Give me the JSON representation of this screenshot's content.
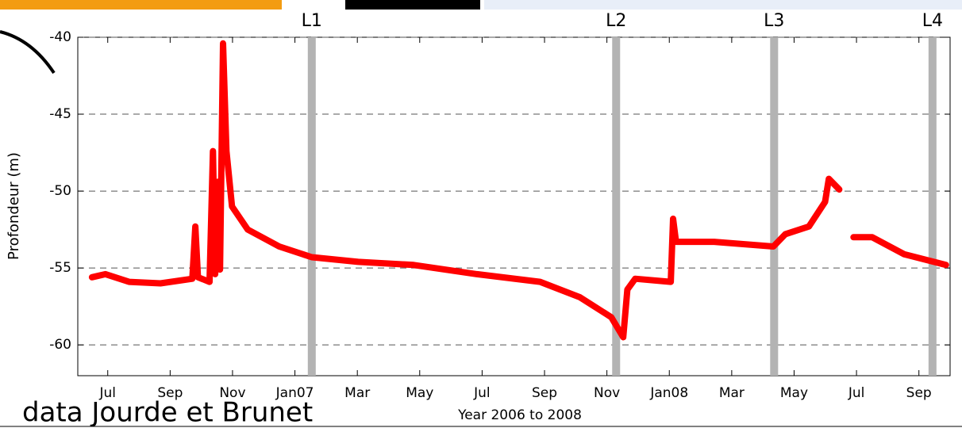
{
  "chart_data": {
    "type": "line",
    "ylabel": "Profondeur (m)",
    "xlabel": "Year 2006 to 2008",
    "note": "data Jourde et Brunet",
    "xlim": [
      2006.42,
      2008.75
    ],
    "ylim": [
      -62,
      -40
    ],
    "yticks": [
      -60,
      -55,
      -50,
      -45,
      -40
    ],
    "xticks": [
      {
        "value": 2006.5,
        "label": "Jul"
      },
      {
        "value": 2006.6667,
        "label": "Sep"
      },
      {
        "value": 2006.8333,
        "label": "Nov"
      },
      {
        "value": 2007.0,
        "label": "Jan07"
      },
      {
        "value": 2007.1667,
        "label": "Mar"
      },
      {
        "value": 2007.3333,
        "label": "May"
      },
      {
        "value": 2007.5,
        "label": "Jul"
      },
      {
        "value": 2007.6667,
        "label": "Sep"
      },
      {
        "value": 2007.8333,
        "label": "Nov"
      },
      {
        "value": 2008.0,
        "label": "Jan08"
      },
      {
        "value": 2008.1667,
        "label": "Mar"
      },
      {
        "value": 2008.3333,
        "label": "May"
      },
      {
        "value": 2008.5,
        "label": "Jul"
      },
      {
        "value": 2008.6667,
        "label": "Sep"
      }
    ],
    "grid": true,
    "bands": [
      {
        "label": "L1",
        "x": 2007.045
      },
      {
        "label": "L2",
        "x": 2007.858
      },
      {
        "label": "L3",
        "x": 2008.28
      },
      {
        "label": "L4",
        "x": 2008.703
      }
    ],
    "band_color": "#b3b3b3",
    "series": [
      {
        "color": "#ff0000",
        "x": [
          2006.458,
          2006.494,
          2006.557,
          2006.641,
          2006.726,
          2006.734,
          2006.741,
          2006.772,
          2006.781,
          2006.787,
          2006.794,
          2006.8,
          2006.808,
          2006.817,
          2006.832,
          2006.874,
          2006.958,
          2007.045,
          2007.169,
          2007.317,
          2007.486,
          2007.655,
          2007.761,
          2007.845,
          2007.877,
          2007.888,
          2007.909,
          2008.004,
          2008.01,
          2008.018,
          2008.12,
          2008.278,
          2008.31,
          2008.373,
          2008.416,
          2008.426,
          2008.454,
          2008.47,
          2008.492,
          2008.542,
          2008.627,
          2008.739
        ],
        "values": [
          -55.6,
          -55.4,
          -55.9,
          -56,
          -55.7,
          -52.3,
          -55.6,
          -55.9,
          -47.4,
          -55.4,
          -49.4,
          -55.1,
          -40.4,
          -47.4,
          -51,
          -52.5,
          -53.6,
          -54.3,
          -54.6,
          -54.8,
          -55.4,
          -55.9,
          -56.9,
          -58.2,
          -59.5,
          -56.4,
          -55.7,
          -55.9,
          -51.8,
          -53.3,
          -53.3,
          -53.6,
          -52.8,
          -52.3,
          -50.7,
          -49.2,
          -49.9,
          null,
          -53,
          -53,
          -54.1,
          -54.8
        ]
      }
    ]
  }
}
